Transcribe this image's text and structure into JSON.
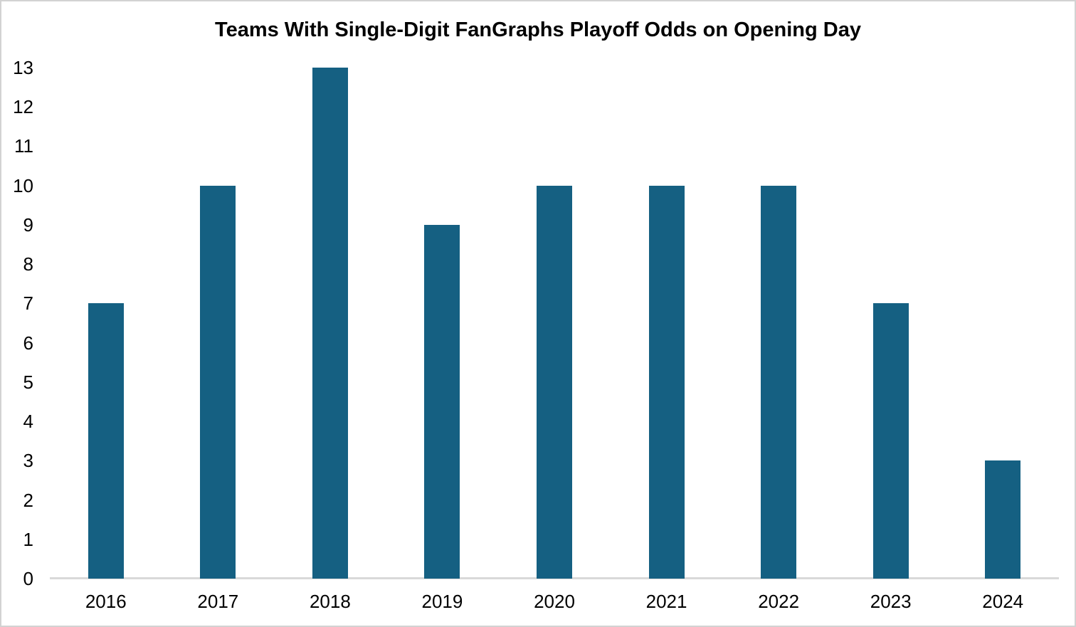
{
  "chart_data": {
    "type": "bar",
    "title": "Teams With Single-Digit FanGraphs Playoff Odds on Opening Day",
    "categories": [
      "2016",
      "2017",
      "2018",
      "2019",
      "2020",
      "2021",
      "2022",
      "2023",
      "2024"
    ],
    "values": [
      7,
      10,
      13,
      9,
      10,
      10,
      10,
      7,
      3
    ],
    "xlabel": "",
    "ylabel": "",
    "ylim": [
      0,
      13
    ],
    "ytick_step": 1,
    "yticks": [
      0,
      1,
      2,
      3,
      4,
      5,
      6,
      7,
      8,
      9,
      10,
      11,
      12,
      13
    ],
    "grid": false,
    "legend_position": "none",
    "bar_color": "#156082",
    "axis_line_color": "#d9d9d9",
    "label_color": "#000000",
    "background_color": "#ffffff",
    "border_color": "#d2d2d2"
  }
}
